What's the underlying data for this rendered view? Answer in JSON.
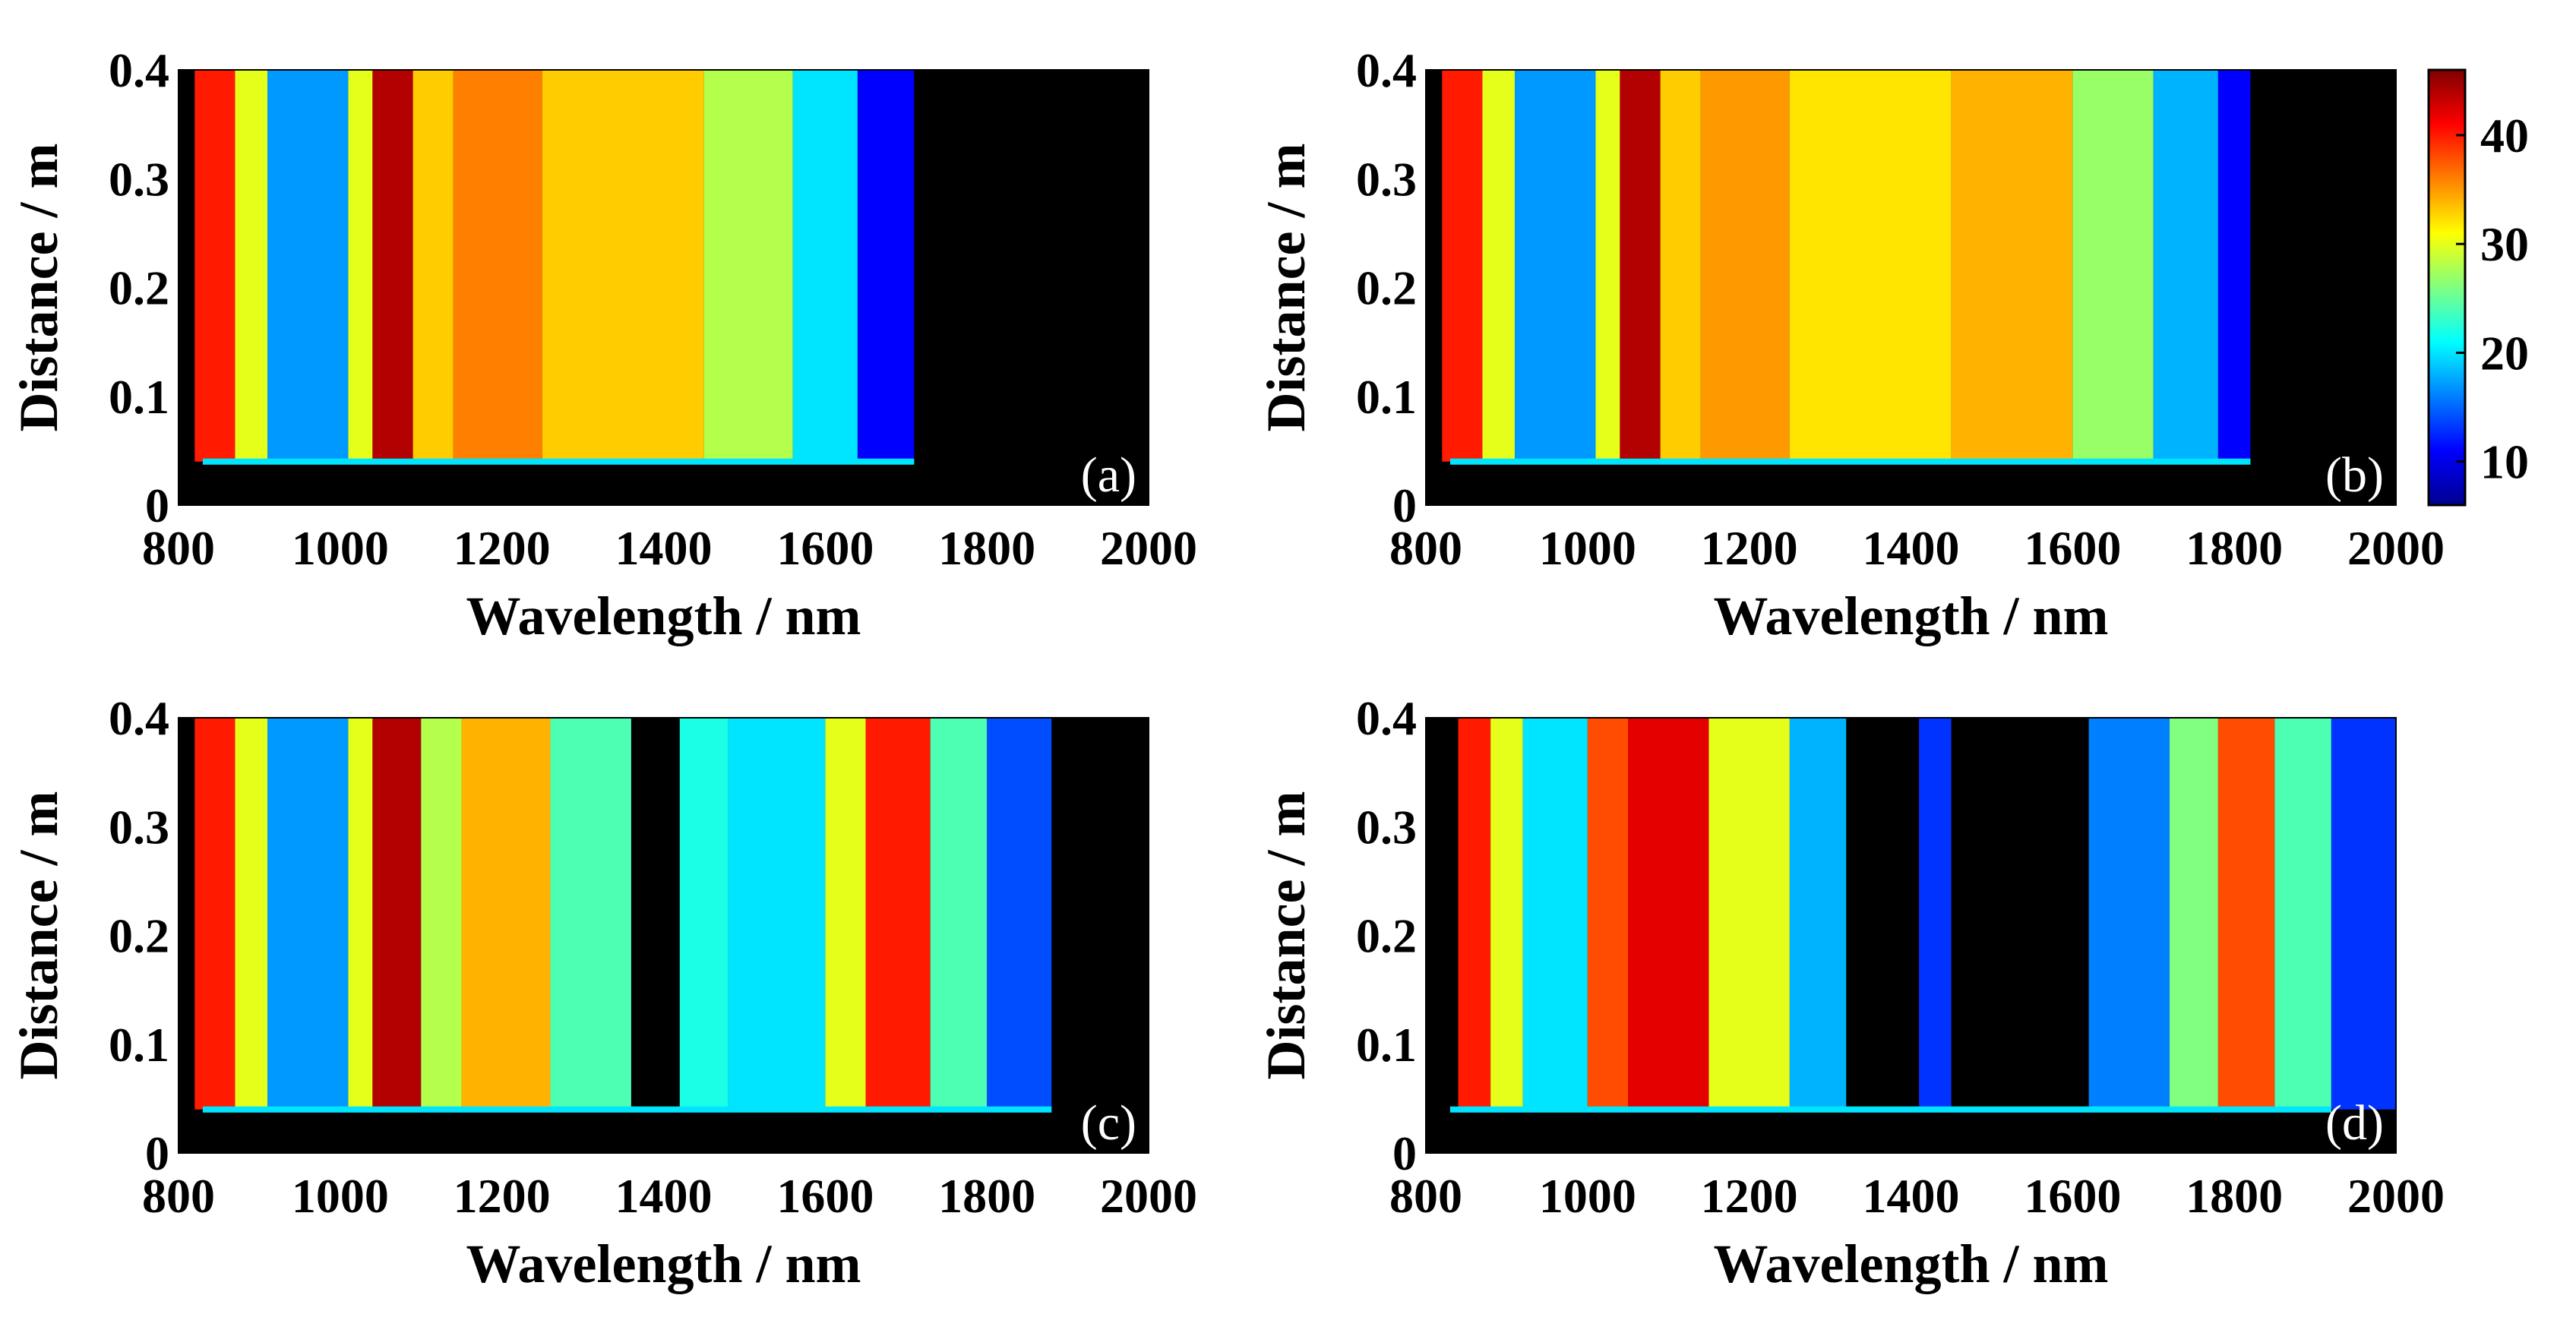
{
  "chart_data": {
    "type": "heatmap",
    "colormap": "jet",
    "background_color": "#000000",
    "colorbar": {
      "min": 6,
      "max": 46,
      "ticks": [
        10,
        20,
        30,
        40
      ]
    },
    "panels": [
      {
        "id": "a",
        "label": "(a)",
        "xlabel": "Wavelength / nm",
        "ylabel": "Distance / m",
        "xlim": [
          800,
          2000
        ],
        "ylim": [
          0,
          0.4
        ],
        "xticks": [
          800,
          1000,
          1200,
          1400,
          1600,
          1800,
          2000
        ],
        "yticks": [
          0,
          0.1,
          0.2,
          0.3,
          0.4
        ],
        "onset_distance": 0.04,
        "spectral_bands": [
          {
            "from": 800,
            "to": 820,
            "level": 6
          },
          {
            "from": 820,
            "to": 870,
            "level": 40
          },
          {
            "from": 870,
            "to": 910,
            "level": 30
          },
          {
            "from": 910,
            "to": 1010,
            "level": 17
          },
          {
            "from": 1010,
            "to": 1040,
            "level": 30
          },
          {
            "from": 1040,
            "to": 1090,
            "level": 44
          },
          {
            "from": 1090,
            "to": 1140,
            "level": 33
          },
          {
            "from": 1140,
            "to": 1250,
            "level": 36
          },
          {
            "from": 1250,
            "to": 1450,
            "level": 33
          },
          {
            "from": 1450,
            "to": 1560,
            "level": 28
          },
          {
            "from": 1560,
            "to": 1640,
            "level": 20
          },
          {
            "from": 1640,
            "to": 1710,
            "level": 11
          },
          {
            "from": 1710,
            "to": 2000,
            "level": 6
          }
        ]
      },
      {
        "id": "b",
        "label": "(b)",
        "xlabel": "Wavelength / nm",
        "ylabel": "Distance / m",
        "xlim": [
          800,
          2000
        ],
        "ylim": [
          0,
          0.4
        ],
        "xticks": [
          800,
          1000,
          1200,
          1400,
          1600,
          1800,
          2000
        ],
        "yticks": [
          0,
          0.1,
          0.2,
          0.3,
          0.4
        ],
        "onset_distance": 0.04,
        "spectral_bands": [
          {
            "from": 800,
            "to": 820,
            "level": 6
          },
          {
            "from": 820,
            "to": 870,
            "level": 40
          },
          {
            "from": 870,
            "to": 910,
            "level": 30
          },
          {
            "from": 910,
            "to": 1010,
            "level": 17
          },
          {
            "from": 1010,
            "to": 1040,
            "level": 30
          },
          {
            "from": 1040,
            "to": 1090,
            "level": 44
          },
          {
            "from": 1090,
            "to": 1140,
            "level": 33
          },
          {
            "from": 1140,
            "to": 1250,
            "level": 35
          },
          {
            "from": 1250,
            "to": 1450,
            "level": 32
          },
          {
            "from": 1450,
            "to": 1600,
            "level": 34
          },
          {
            "from": 1600,
            "to": 1700,
            "level": 27
          },
          {
            "from": 1700,
            "to": 1780,
            "level": 18
          },
          {
            "from": 1780,
            "to": 1820,
            "level": 11
          },
          {
            "from": 1820,
            "to": 2000,
            "level": 6
          }
        ]
      },
      {
        "id": "c",
        "label": "(c)",
        "xlabel": "Wavelength / nm",
        "ylabel": "Distance / m",
        "xlim": [
          800,
          2000
        ],
        "ylim": [
          0,
          0.4
        ],
        "xticks": [
          800,
          1000,
          1200,
          1400,
          1600,
          1800,
          2000
        ],
        "yticks": [
          0,
          0.1,
          0.2,
          0.3,
          0.4
        ],
        "onset_distance": 0.04,
        "spectral_bands": [
          {
            "from": 800,
            "to": 820,
            "level": 6
          },
          {
            "from": 820,
            "to": 870,
            "level": 40
          },
          {
            "from": 870,
            "to": 910,
            "level": 30
          },
          {
            "from": 910,
            "to": 1010,
            "level": 17
          },
          {
            "from": 1010,
            "to": 1040,
            "level": 30
          },
          {
            "from": 1040,
            "to": 1100,
            "level": 44
          },
          {
            "from": 1100,
            "to": 1150,
            "level": 28
          },
          {
            "from": 1150,
            "to": 1260,
            "level": 34
          },
          {
            "from": 1260,
            "to": 1360,
            "level": 24
          },
          {
            "from": 1360,
            "to": 1420,
            "level": 6
          },
          {
            "from": 1420,
            "to": 1480,
            "level": 22
          },
          {
            "from": 1480,
            "to": 1600,
            "level": 20
          },
          {
            "from": 1600,
            "to": 1650,
            "level": 30
          },
          {
            "from": 1650,
            "to": 1730,
            "level": 40
          },
          {
            "from": 1730,
            "to": 1800,
            "level": 24
          },
          {
            "from": 1800,
            "to": 1880,
            "level": 14
          },
          {
            "from": 1880,
            "to": 2000,
            "level": 6
          }
        ]
      },
      {
        "id": "d",
        "label": "(d)",
        "xlabel": "Wavelength / nm",
        "ylabel": "Distance / m",
        "xlim": [
          800,
          2000
        ],
        "ylim": [
          0,
          0.4
        ],
        "xticks": [
          800,
          1000,
          1200,
          1400,
          1600,
          1800,
          2000
        ],
        "yticks": [
          0,
          0.1,
          0.2,
          0.3,
          0.4
        ],
        "onset_distance": 0.04,
        "spectral_bands": [
          {
            "from": 800,
            "to": 840,
            "level": 6
          },
          {
            "from": 840,
            "to": 880,
            "level": 40
          },
          {
            "from": 880,
            "to": 920,
            "level": 30
          },
          {
            "from": 920,
            "to": 1000,
            "level": 20
          },
          {
            "from": 1000,
            "to": 1050,
            "level": 38
          },
          {
            "from": 1050,
            "to": 1150,
            "level": 42
          },
          {
            "from": 1150,
            "to": 1250,
            "level": 30
          },
          {
            "from": 1250,
            "to": 1320,
            "level": 18
          },
          {
            "from": 1320,
            "to": 1410,
            "level": 6
          },
          {
            "from": 1410,
            "to": 1450,
            "level": 13
          },
          {
            "from": 1450,
            "to": 1620,
            "level": 6
          },
          {
            "from": 1620,
            "to": 1720,
            "level": 16
          },
          {
            "from": 1720,
            "to": 1780,
            "level": 26
          },
          {
            "from": 1780,
            "to": 1850,
            "level": 38
          },
          {
            "from": 1850,
            "to": 1920,
            "level": 24
          },
          {
            "from": 1920,
            "to": 2000,
            "level": 13
          }
        ]
      }
    ]
  }
}
